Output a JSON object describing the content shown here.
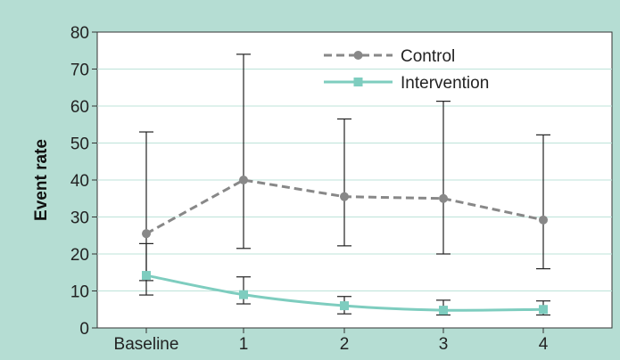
{
  "chart_data": {
    "type": "line",
    "categories": [
      "Baseline",
      "1",
      "2",
      "3",
      "4"
    ],
    "ylabel": "Event rate",
    "xlabel": "",
    "ylim": [
      0,
      80
    ],
    "yticks": [
      0,
      10,
      20,
      30,
      40,
      50,
      60,
      70,
      80
    ],
    "grid": "horizontal",
    "legend_position": "top-right",
    "series": [
      {
        "name": "Control",
        "color": "#888888",
        "line_style": "dashed",
        "marker": "circle",
        "values": [
          25.5,
          40,
          35.5,
          35,
          29.2
        ],
        "error_low": [
          8.9,
          21.5,
          22.2,
          20.0,
          16.0
        ],
        "error_high": [
          53.0,
          74.0,
          56.5,
          61.3,
          52.2
        ]
      },
      {
        "name": "Intervention",
        "color": "#7ecdbf",
        "line_style": "solid",
        "marker": "square",
        "values": [
          14.2,
          9.0,
          6.0,
          4.8,
          5.0
        ],
        "error_low": [
          12.8,
          6.5,
          3.8,
          3.5,
          3.5
        ],
        "error_high": [
          22.8,
          13.8,
          8.5,
          7.5,
          7.3
        ]
      }
    ]
  }
}
